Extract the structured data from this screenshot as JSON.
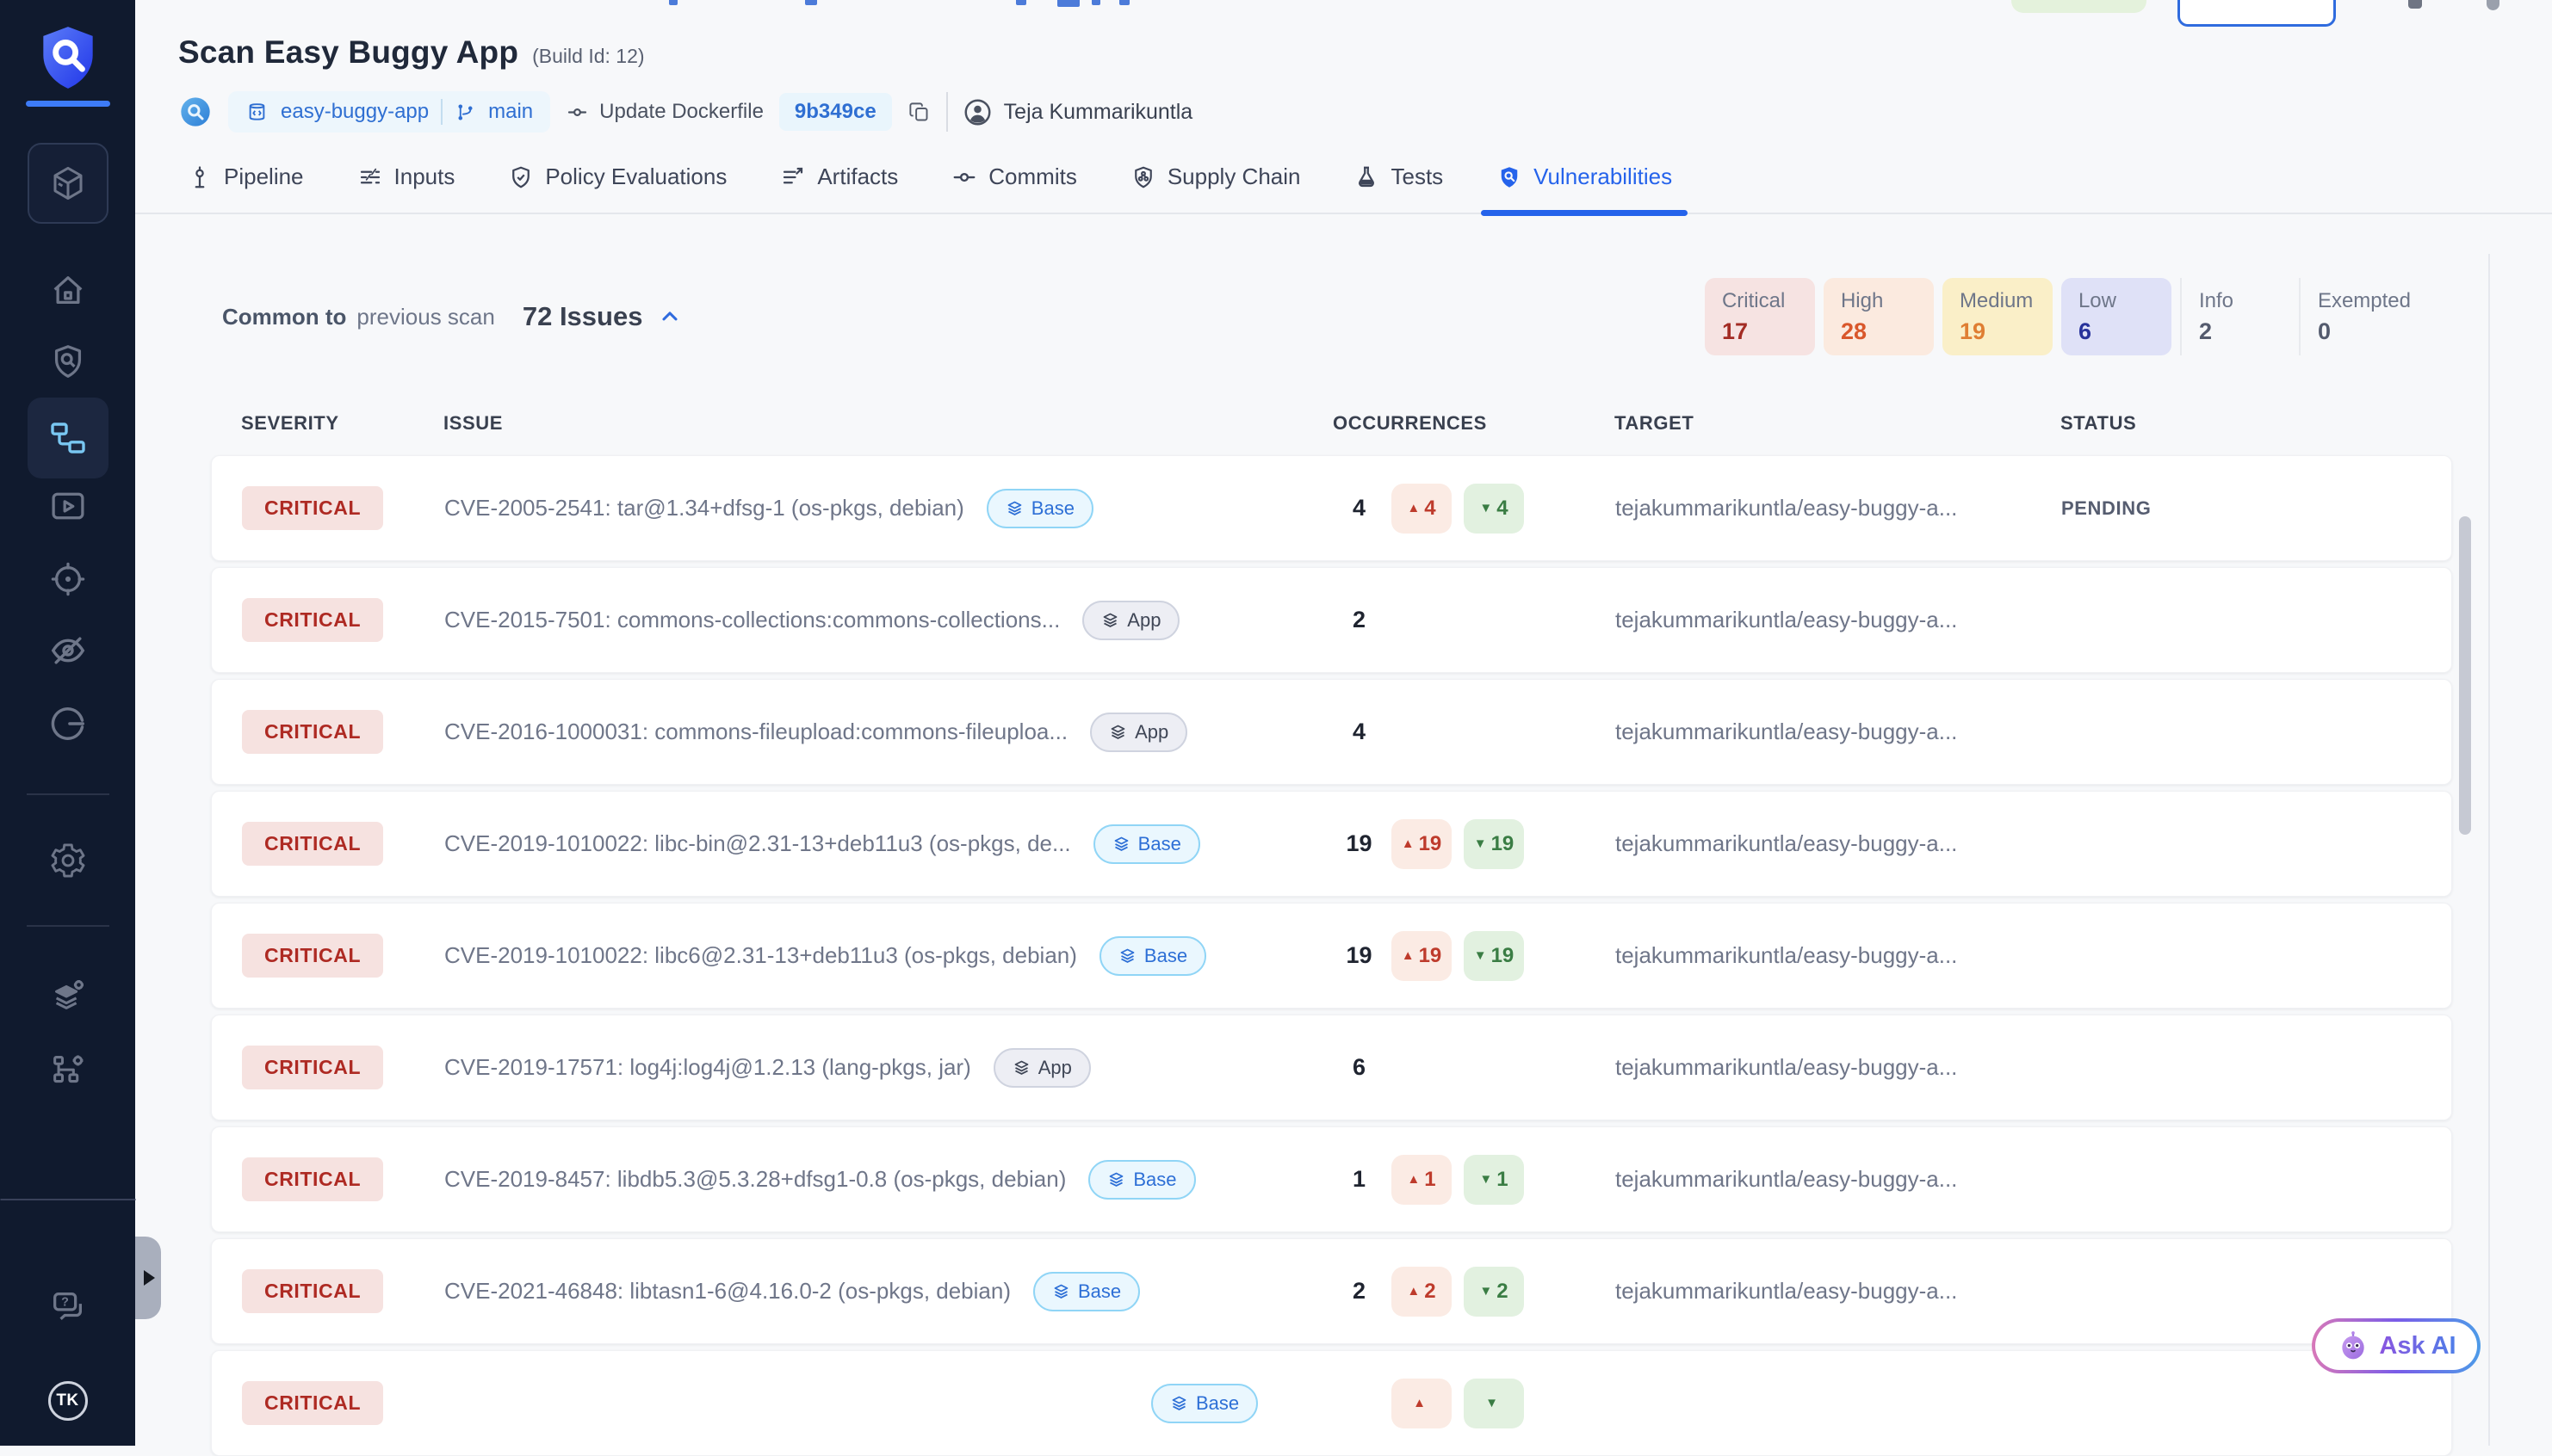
{
  "header": {
    "title": "Scan Easy Buggy App",
    "build_id": "(Build Id: 12)",
    "repo": "easy-buggy-app",
    "branch": "main",
    "commit_message": "Update Dockerfile",
    "commit_hash": "9b349ce",
    "author": "Teja Kummarikuntla"
  },
  "tabs": [
    {
      "label": "Pipeline",
      "icon": "pipeline-icon",
      "active": false
    },
    {
      "label": "Inputs",
      "icon": "inputs-icon",
      "active": false
    },
    {
      "label": "Policy Evaluations",
      "icon": "policy-shield-check-icon",
      "active": false
    },
    {
      "label": "Artifacts",
      "icon": "artifacts-list-icon",
      "active": false
    },
    {
      "label": "Commits",
      "icon": "commit-icon",
      "active": false
    },
    {
      "label": "Supply Chain",
      "icon": "supply-chain-shield-icon",
      "active": false
    },
    {
      "label": "Tests",
      "icon": "flask-icon",
      "active": false
    },
    {
      "label": "Vulnerabilities",
      "icon": "vulnerability-shield-search-icon",
      "active": true
    }
  ],
  "issues_bar": {
    "prefix_bold": "Common to",
    "prefix_rest": "previous scan",
    "count_label": "72 Issues"
  },
  "summary": [
    {
      "key": "critical",
      "label": "Critical",
      "value": "17"
    },
    {
      "key": "high",
      "label": "High",
      "value": "28"
    },
    {
      "key": "medium",
      "label": "Medium",
      "value": "19"
    },
    {
      "key": "low",
      "label": "Low",
      "value": "6"
    },
    {
      "key": "info",
      "label": "Info",
      "value": "2"
    },
    {
      "key": "exempted",
      "label": "Exempted",
      "value": "0"
    }
  ],
  "table": {
    "headers": {
      "severity": "SEVERITY",
      "issue": "ISSUE",
      "occurrences": "OCCURRENCES",
      "target": "TARGET",
      "status": "STATUS"
    },
    "rows": [
      {
        "severity": "CRITICAL",
        "issue": "CVE-2005-2541: tar@1.34+dfsg-1 (os-pkgs, debian)",
        "tag": "Base",
        "occurrences": "4",
        "up": "4",
        "down": "4",
        "target": "tejakummarikuntla/easy-buggy-a...",
        "status": "PENDING",
        "partial": false
      },
      {
        "severity": "CRITICAL",
        "issue": "CVE-2015-7501: commons-collections:commons-collections...",
        "tag": "App",
        "occurrences": "2",
        "up": null,
        "down": null,
        "target": "tejakummarikuntla/easy-buggy-a...",
        "status": "",
        "partial": false
      },
      {
        "severity": "CRITICAL",
        "issue": "CVE-2016-1000031: commons-fileupload:commons-fileuploa...",
        "tag": "App",
        "occurrences": "4",
        "up": null,
        "down": null,
        "target": "tejakummarikuntla/easy-buggy-a...",
        "status": "",
        "partial": false
      },
      {
        "severity": "CRITICAL",
        "issue": "CVE-2019-1010022: libc-bin@2.31-13+deb11u3 (os-pkgs, de...",
        "tag": "Base",
        "occurrences": "19",
        "up": "19",
        "down": "19",
        "target": "tejakummarikuntla/easy-buggy-a...",
        "status": "",
        "partial": false
      },
      {
        "severity": "CRITICAL",
        "issue": "CVE-2019-1010022: libc6@2.31-13+deb11u3 (os-pkgs, debian)",
        "tag": "Base",
        "occurrences": "19",
        "up": "19",
        "down": "19",
        "target": "tejakummarikuntla/easy-buggy-a...",
        "status": "",
        "partial": false
      },
      {
        "severity": "CRITICAL",
        "issue": "CVE-2019-17571: log4j:log4j@1.2.13 (lang-pkgs, jar)",
        "tag": "App",
        "occurrences": "6",
        "up": null,
        "down": null,
        "target": "tejakummarikuntla/easy-buggy-a...",
        "status": "",
        "partial": false
      },
      {
        "severity": "CRITICAL",
        "issue": "CVE-2019-8457: libdb5.3@5.3.28+dfsg1-0.8 (os-pkgs, debian)",
        "tag": "Base",
        "occurrences": "1",
        "up": "1",
        "down": "1",
        "target": "tejakummarikuntla/easy-buggy-a...",
        "status": "",
        "partial": false
      },
      {
        "severity": "CRITICAL",
        "issue": "CVE-2021-46848: libtasn1-6@4.16.0-2 (os-pkgs, debian)",
        "tag": "Base",
        "occurrences": "2",
        "up": "2",
        "down": "2",
        "target": "tejakummarikuntla/easy-buggy-a...",
        "status": "",
        "partial": false
      },
      {
        "severity": "CRITICAL",
        "issue": "",
        "tag": "Base",
        "occurrences": "",
        "up": "",
        "down": "",
        "target": "",
        "status": "",
        "partial": true
      }
    ]
  },
  "ask_ai": {
    "label": "Ask AI"
  },
  "sidebar": {
    "icons": [
      "scanner-shield-logo",
      "cube",
      "home",
      "shield-search",
      "pipeline-flow",
      "video-play",
      "target",
      "eye-off",
      "gauge",
      "gear",
      "layers-gear",
      "network-gear",
      "chat-help"
    ],
    "avatar_initials": "TK"
  },
  "colors": {
    "accent_blue": "#2563EB",
    "sidebar_bg": "#101A2E",
    "critical_bg": "#F6E2E0",
    "critical_text": "#AE2A23",
    "high_bg": "#FBEADF",
    "high_text": "#D9572B",
    "medium_bg": "#FAEFC8",
    "medium_text": "#DF7E33",
    "low_bg": "#DFE1F7",
    "low_text": "#27329B",
    "delta_up_bg": "#FBEBE4",
    "delta_up_text": "#BE3B2C",
    "delta_down_bg": "#E2F1E0",
    "delta_down_text": "#3A7D44",
    "base_tag_border": "#90D5F6",
    "ai_gradient": "#D878B8-#7A5CE8-#4D9BE8"
  }
}
